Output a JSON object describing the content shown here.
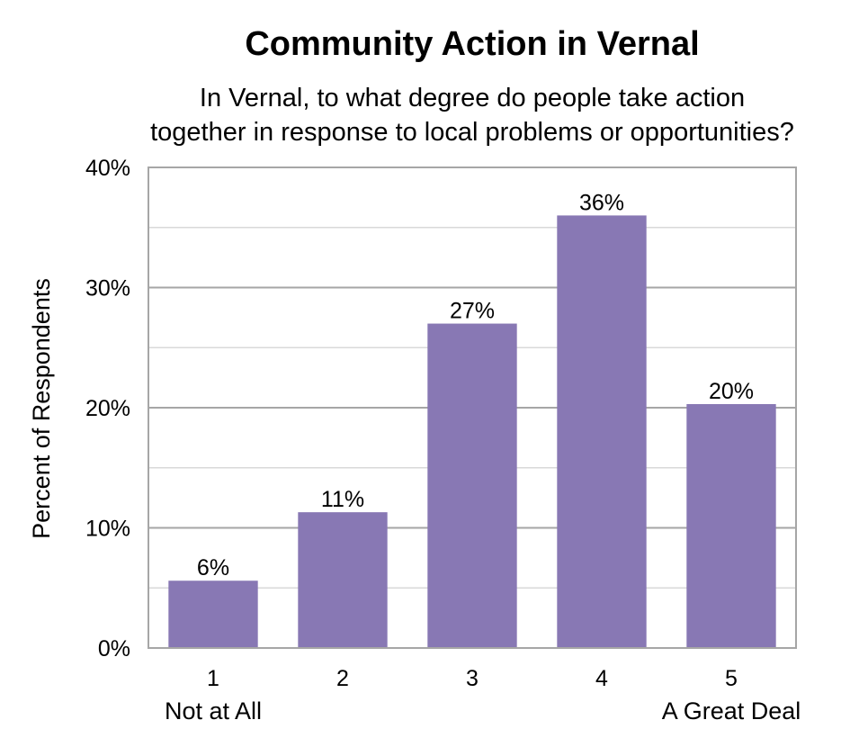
{
  "chart_data": {
    "type": "bar",
    "title": "Community Action in Vernal",
    "subtitle": [
      "In Vernal, to what degree do people take action",
      "together in response to local problems or opportunities?"
    ],
    "xlabel": "",
    "ylabel": "Percent of Respondents",
    "categories": [
      "1",
      "2",
      "3",
      "4",
      "5"
    ],
    "category_sublabels": [
      "Not at All",
      "",
      "",
      "",
      "A Great Deal"
    ],
    "values": [
      5.6,
      11.3,
      27.0,
      36.0,
      20.3
    ],
    "data_labels": [
      "6%",
      "11%",
      "27%",
      "36%",
      "20%"
    ],
    "ylim": [
      0,
      40
    ],
    "yticks": [
      0,
      10,
      20,
      30,
      40
    ],
    "ytick_labels": [
      "0%",
      "10%",
      "20%",
      "30%",
      "40%"
    ],
    "grid": true,
    "legend": "none",
    "colors": {
      "bar": "#8878b4",
      "major_grid": "#a6a6a6",
      "minor_grid": "#d9d9d9",
      "border": "#a6a6a6"
    }
  }
}
